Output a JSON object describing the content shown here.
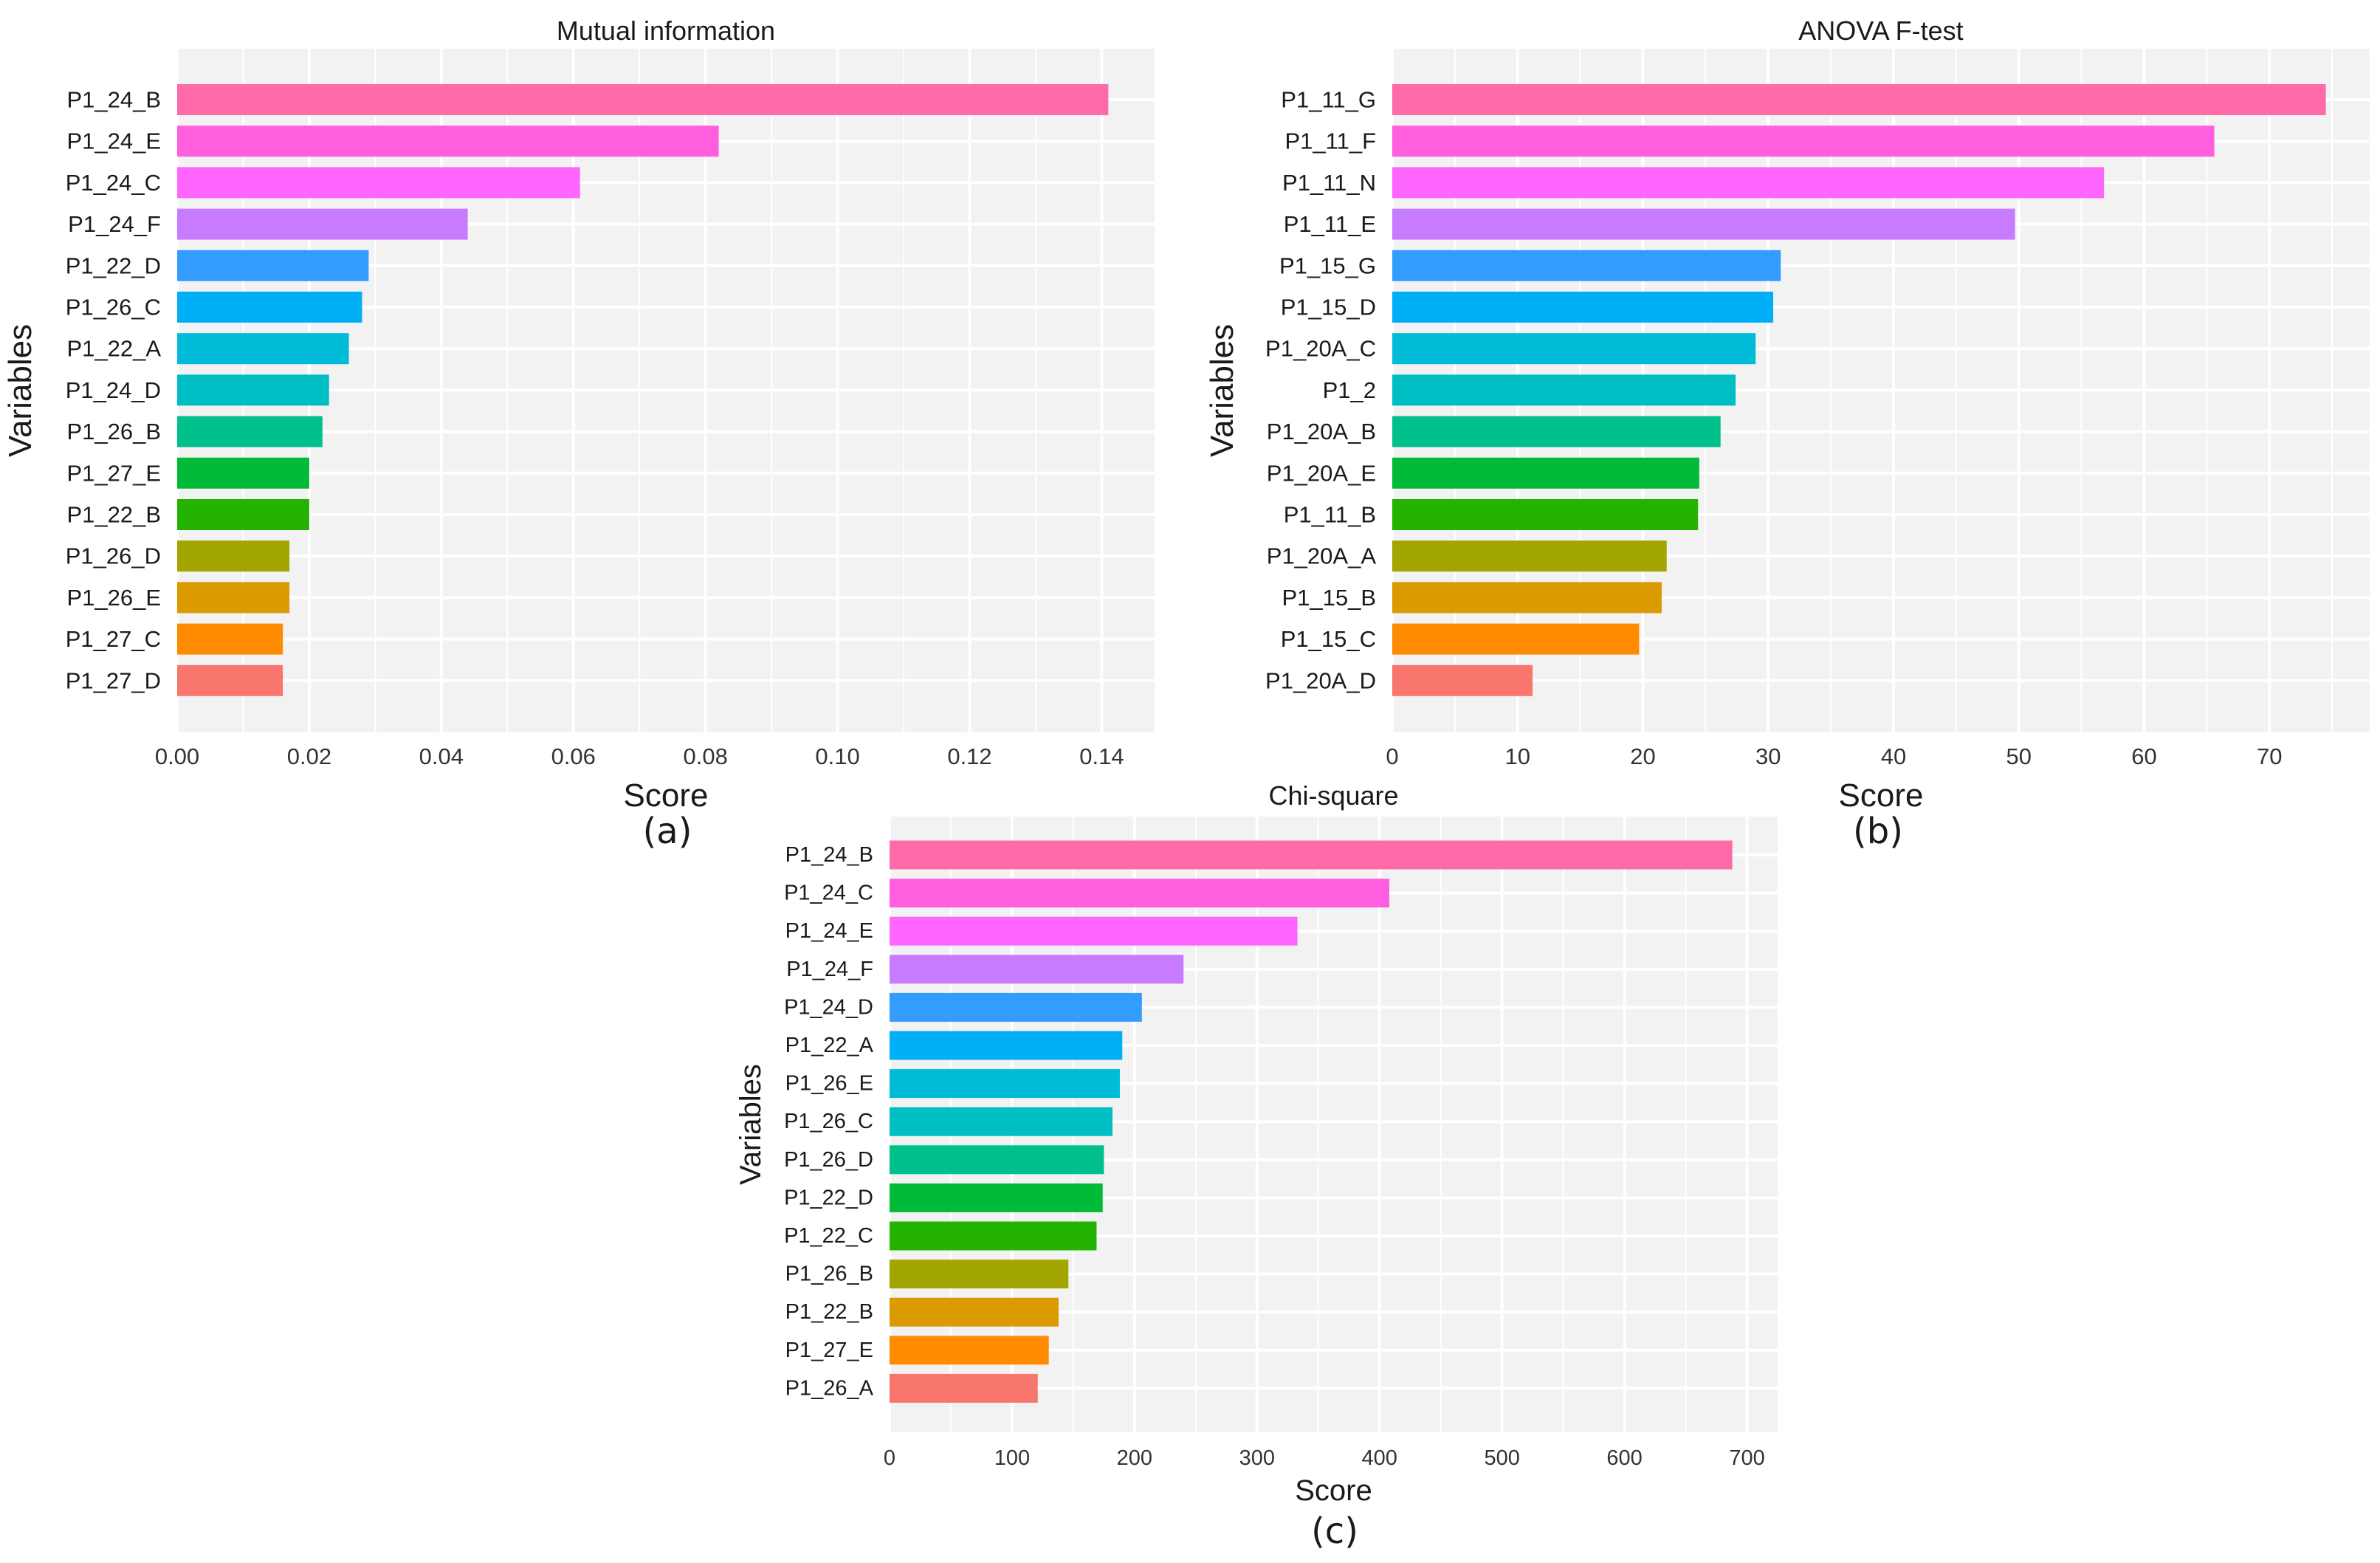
{
  "palette": [
    "#FF6AA8",
    "#FF5FDF",
    "#FF66FF",
    "#C77CFF",
    "#339DFF",
    "#00B0F6",
    "#00BCD8",
    "#00BFC4",
    "#00C08B",
    "#00BA38",
    "#24B300",
    "#A3A500",
    "#DB9A00",
    "#FF8C00",
    "#F8766D"
  ],
  "panel_colors": {
    "background": "#F2F2F2",
    "grid": "#FFFFFF",
    "text": "#1a1a1a",
    "tick_text": "#333333"
  },
  "chart_data": [
    {
      "type": "bar",
      "orientation": "horizontal",
      "title": "Mutual information",
      "xlabel": "Score",
      "ylabel": "Variables",
      "panel_label": "(a)",
      "categories": [
        "P1_24_B",
        "P1_24_E",
        "P1_24_C",
        "P1_24_F",
        "P1_22_D",
        "P1_26_C",
        "P1_22_A",
        "P1_24_D",
        "P1_26_B",
        "P1_27_E",
        "P1_22_B",
        "P1_26_D",
        "P1_26_E",
        "P1_27_C",
        "P1_27_D"
      ],
      "values": [
        0.141,
        0.082,
        0.061,
        0.044,
        0.029,
        0.028,
        0.026,
        0.023,
        0.022,
        0.02,
        0.02,
        0.017,
        0.017,
        0.016,
        0.016
      ],
      "xlim": [
        0,
        0.148
      ],
      "xticks": [
        0.0,
        0.02,
        0.04,
        0.06,
        0.08,
        0.1,
        0.12,
        0.14
      ],
      "xtick_labels": [
        "0.00",
        "0.02",
        "0.04",
        "0.06",
        "0.08",
        "0.10",
        "0.12",
        "0.14"
      ]
    },
    {
      "type": "bar",
      "orientation": "horizontal",
      "title": "ANOVA F-test",
      "xlabel": "Score",
      "ylabel": "Variables",
      "panel_label": "(b)",
      "categories": [
        "P1_11_G",
        "P1_11_F",
        "P1_11_N",
        "P1_11_E",
        "P1_15_G",
        "P1_15_D",
        "P1_20A_C",
        "P1_2",
        "P1_20A_B",
        "P1_20A_E",
        "P1_11_B",
        "P1_20A_A",
        "P1_15_B",
        "P1_15_C",
        "P1_20A_D"
      ],
      "values": [
        74.5,
        65.6,
        56.8,
        49.7,
        31.0,
        30.4,
        29.0,
        27.4,
        26.2,
        24.5,
        24.4,
        21.9,
        21.5,
        19.7,
        11.2
      ],
      "xlim": [
        0,
        78
      ],
      "xticks": [
        0,
        10,
        20,
        30,
        40,
        50,
        60,
        70
      ],
      "xtick_labels": [
        "0",
        "10",
        "20",
        "30",
        "40",
        "50",
        "60",
        "70"
      ]
    },
    {
      "type": "bar",
      "orientation": "horizontal",
      "title": "Chi-square",
      "xlabel": "Score",
      "ylabel": "Variables",
      "panel_label": "(c)",
      "categories": [
        "P1_24_B",
        "P1_24_C",
        "P1_24_E",
        "P1_24_F",
        "P1_24_D",
        "P1_22_A",
        "P1_26_E",
        "P1_26_C",
        "P1_26_D",
        "P1_22_D",
        "P1_22_C",
        "P1_26_B",
        "P1_22_B",
        "P1_27_E",
        "P1_26_A"
      ],
      "values": [
        688,
        408,
        333,
        240,
        206,
        190,
        188,
        182,
        175,
        174,
        169,
        146,
        138,
        130,
        121
      ],
      "xlim": [
        0,
        725
      ],
      "xticks": [
        0,
        100,
        200,
        300,
        400,
        500,
        600,
        700
      ],
      "xtick_labels": [
        "0",
        "100",
        "200",
        "300",
        "400",
        "500",
        "600",
        "700"
      ]
    }
  ]
}
